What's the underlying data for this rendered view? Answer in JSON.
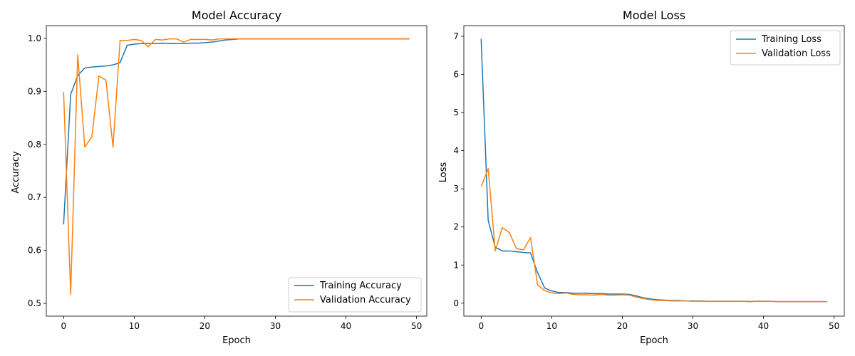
{
  "chart_data": [
    {
      "type": "line",
      "title": "Model Accuracy",
      "xlabel": "Epoch",
      "ylabel": "Accuracy",
      "xlim": [
        -2.45,
        51.45
      ],
      "ylim": [
        0.476,
        1.024
      ],
      "xticks": [
        0,
        10,
        20,
        30,
        40,
        50
      ],
      "yticks": [
        0.5,
        0.6,
        0.7,
        0.8,
        0.9,
        1.0
      ],
      "ytick_labels": [
        "0.5",
        "0.6",
        "0.7",
        "0.8",
        "0.9",
        "1.0"
      ],
      "grid": false,
      "legend_position": "lower-right",
      "series": [
        {
          "name": "Training Accuracy",
          "color": "#1f77b4",
          "values": [
            0.649,
            0.894,
            0.93,
            0.944,
            0.946,
            0.947,
            0.948,
            0.95,
            0.954,
            0.987,
            0.989,
            0.99,
            0.99,
            0.99,
            0.991,
            0.99,
            0.99,
            0.99,
            0.991,
            0.991,
            0.992,
            0.993,
            0.995,
            0.997,
            0.998,
            0.999,
            0.999,
            0.999,
            0.999,
            0.999,
            0.999,
            0.999,
            0.999,
            0.999,
            0.999,
            0.999,
            0.999,
            0.999,
            0.999,
            0.999,
            0.999,
            0.999,
            0.999,
            0.999,
            0.999,
            0.999,
            0.999,
            0.999,
            0.999,
            0.999
          ]
        },
        {
          "name": "Validation Accuracy",
          "color": "#ff7f0e",
          "values": [
            0.899,
            0.517,
            0.969,
            0.795,
            0.814,
            0.929,
            0.921,
            0.795,
            0.996,
            0.996,
            0.998,
            0.996,
            0.984,
            0.998,
            0.997,
            0.999,
            0.999,
            0.993,
            0.998,
            0.998,
            0.998,
            0.997,
            0.999,
            0.999,
            0.999,
            0.999,
            0.999,
            0.999,
            0.999,
            0.999,
            0.999,
            0.999,
            0.999,
            0.999,
            0.999,
            0.999,
            0.999,
            0.999,
            0.999,
            0.999,
            0.999,
            0.999,
            0.999,
            0.999,
            0.999,
            0.999,
            0.999,
            0.999,
            0.999,
            0.999
          ]
        }
      ]
    },
    {
      "type": "line",
      "title": "Model Loss",
      "xlabel": "Epoch",
      "ylabel": "Loss",
      "xlim": [
        -2.45,
        51.45
      ],
      "ylim": [
        -0.34,
        7.28
      ],
      "xticks": [
        0,
        10,
        20,
        30,
        40,
        50
      ],
      "yticks": [
        0,
        1,
        2,
        3,
        4,
        5,
        6,
        7
      ],
      "ytick_labels": [
        "0",
        "1",
        "2",
        "3",
        "4",
        "5",
        "6",
        "7"
      ],
      "grid": false,
      "legend_position": "upper-right",
      "series": [
        {
          "name": "Training Loss",
          "color": "#1f77b4",
          "values": [
            6.93,
            2.17,
            1.47,
            1.37,
            1.37,
            1.35,
            1.33,
            1.32,
            0.8,
            0.4,
            0.32,
            0.28,
            0.28,
            0.26,
            0.26,
            0.26,
            0.25,
            0.25,
            0.24,
            0.24,
            0.24,
            0.23,
            0.19,
            0.14,
            0.11,
            0.09,
            0.08,
            0.07,
            0.07,
            0.06,
            0.06,
            0.06,
            0.05,
            0.05,
            0.05,
            0.05,
            0.05,
            0.05,
            0.04,
            0.05,
            0.05,
            0.05,
            0.04,
            0.04,
            0.04,
            0.04,
            0.04,
            0.04,
            0.04,
            0.04
          ]
        },
        {
          "name": "Validation Loss",
          "color": "#ff7f0e",
          "values": [
            3.05,
            3.53,
            1.37,
            1.98,
            1.85,
            1.43,
            1.4,
            1.72,
            0.48,
            0.33,
            0.27,
            0.25,
            0.27,
            0.23,
            0.22,
            0.22,
            0.21,
            0.23,
            0.21,
            0.21,
            0.22,
            0.21,
            0.16,
            0.12,
            0.09,
            0.07,
            0.07,
            0.06,
            0.06,
            0.06,
            0.05,
            0.05,
            0.05,
            0.05,
            0.05,
            0.05,
            0.05,
            0.05,
            0.05,
            0.05,
            0.05,
            0.05,
            0.04,
            0.04,
            0.04,
            0.04,
            0.04,
            0.04,
            0.04,
            0.04
          ]
        }
      ]
    }
  ]
}
